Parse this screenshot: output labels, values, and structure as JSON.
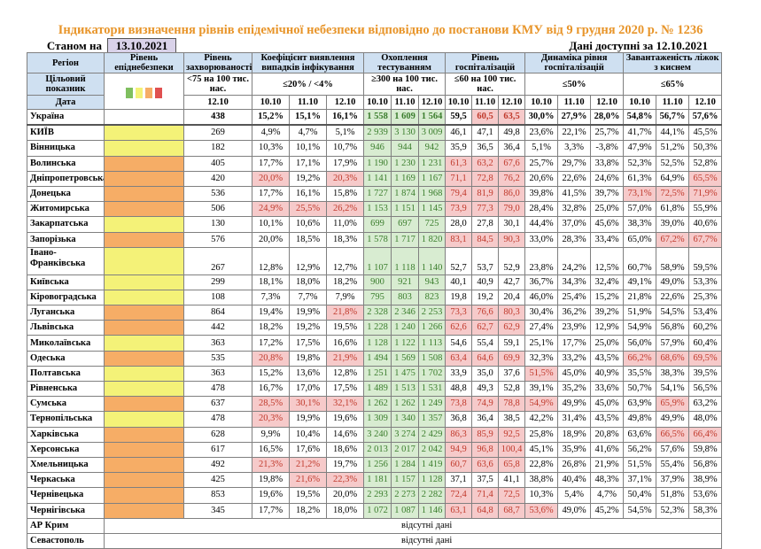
{
  "title": "Індикатори визначення рівнів епідемічної небезпеки відповідно до постанови КМУ від 9 грудня 2020 р. № 1236",
  "as_of_label": "Станом на",
  "as_of_date": "13.10.2021",
  "available_label": "Дані доступні за  12.10.2021",
  "colors": {
    "yellow": "#f4f278",
    "orange": "#f6ad66",
    "green": "#7fbf5f",
    "red": "#e05050",
    "title": "#e8952a"
  },
  "headers": {
    "region": "Регіон",
    "level": "Рівень епіднебезпеки",
    "incidence": "Рівень захворюваності",
    "detection": "Коефіцієнт виявлення випадків інфікування",
    "testing": "Охоплення тестуванням",
    "hospitalization": "Рівень госпіталізацій",
    "hosp_dynamics": "Динаміка рівня госпіталізацій",
    "oxygen_beds": "Завантаженість ліжок з киснем"
  },
  "targets": {
    "label": "Цільовий показник",
    "incidence": "<75 на 100 тис. нас.",
    "detection": "≤20% / <4%",
    "testing": "≥300 на 100 тис. нас.",
    "hospitalization": "≤60 на 100 тис. нас.",
    "hosp_dynamics": "≤50%",
    "oxygen_beds": "≤65%"
  },
  "level_legend": [
    "green",
    "yellow",
    "orange",
    "red"
  ],
  "dates": {
    "label": "Дата",
    "incidence": "12.10",
    "d1": "10.10",
    "d2": "11.10",
    "d3": "12.10"
  },
  "rows": [
    {
      "name": "Україна",
      "level": "",
      "inc": "438",
      "det": [
        "15,2%",
        "15,1%",
        "16,1%"
      ],
      "tst": [
        "1 558",
        "1 609",
        "1 564"
      ],
      "hosp": [
        "59,5",
        "60,5",
        "63,5"
      ],
      "dyn": [
        "30,0%",
        "27,9%",
        "28,0%"
      ],
      "oxy": [
        "54,8%",
        "56,7%",
        "57,6%"
      ],
      "red": [
        "h1",
        "h2"
      ]
    },
    {
      "name": "КИЇВ",
      "level": "yellow",
      "inc": "269",
      "det": [
        "4,9%",
        "4,7%",
        "5,1%"
      ],
      "tst": [
        "2 939",
        "3 130",
        "3 009"
      ],
      "hosp": [
        "46,1",
        "47,1",
        "49,8"
      ],
      "dyn": [
        "23,6%",
        "22,1%",
        "25,7%"
      ],
      "oxy": [
        "41,7%",
        "44,1%",
        "45,5%"
      ],
      "red": []
    },
    {
      "name": "Вінницька",
      "level": "yellow",
      "inc": "182",
      "det": [
        "10,3%",
        "10,1%",
        "10,7%"
      ],
      "tst": [
        "946",
        "944",
        "942"
      ],
      "hosp": [
        "35,9",
        "36,5",
        "36,4"
      ],
      "dyn": [
        "5,1%",
        "3,3%",
        "-3,8%"
      ],
      "oxy": [
        "47,9%",
        "51,2%",
        "50,3%"
      ],
      "red": []
    },
    {
      "name": "Волинська",
      "level": "orange",
      "inc": "405",
      "det": [
        "17,7%",
        "17,1%",
        "17,9%"
      ],
      "tst": [
        "1 190",
        "1 230",
        "1 231"
      ],
      "hosp": [
        "61,3",
        "63,2",
        "67,6"
      ],
      "dyn": [
        "25,7%",
        "29,7%",
        "33,8%"
      ],
      "oxy": [
        "52,3%",
        "52,5%",
        "52,8%"
      ],
      "red": [
        "h0",
        "h1",
        "h2"
      ]
    },
    {
      "name": "Дніпропетровська",
      "level": "orange",
      "inc": "420",
      "det": [
        "20,0%",
        "19,2%",
        "20,3%"
      ],
      "tst": [
        "1 141",
        "1 169",
        "1 167"
      ],
      "hosp": [
        "71,1",
        "72,8",
        "76,2"
      ],
      "dyn": [
        "20,6%",
        "22,6%",
        "24,6%"
      ],
      "oxy": [
        "61,3%",
        "64,9%",
        "65,5%"
      ],
      "red": [
        "d0",
        "d2",
        "h0",
        "h1",
        "h2",
        "o2"
      ]
    },
    {
      "name": "Донецька",
      "level": "orange",
      "inc": "536",
      "det": [
        "17,7%",
        "16,1%",
        "15,8%"
      ],
      "tst": [
        "1 727",
        "1 874",
        "1 968"
      ],
      "hosp": [
        "79,4",
        "81,9",
        "86,0"
      ],
      "dyn": [
        "39,8%",
        "41,5%",
        "39,7%"
      ],
      "oxy": [
        "73,1%",
        "72,5%",
        "71,9%"
      ],
      "red": [
        "h0",
        "h1",
        "h2",
        "o0",
        "o1",
        "o2"
      ]
    },
    {
      "name": "Житомирська",
      "level": "orange",
      "inc": "506",
      "det": [
        "24,9%",
        "25,5%",
        "26,2%"
      ],
      "tst": [
        "1 153",
        "1 151",
        "1 145"
      ],
      "hosp": [
        "73,9",
        "77,3",
        "79,0"
      ],
      "dyn": [
        "28,4%",
        "32,8%",
        "25,0%"
      ],
      "oxy": [
        "57,0%",
        "61,8%",
        "55,9%"
      ],
      "red": [
        "d0",
        "d1",
        "d2",
        "h0",
        "h1",
        "h2"
      ]
    },
    {
      "name": "Закарпатська",
      "level": "yellow",
      "inc": "130",
      "det": [
        "10,1%",
        "10,6%",
        "11,0%"
      ],
      "tst": [
        "699",
        "697",
        "725"
      ],
      "hosp": [
        "28,0",
        "27,8",
        "30,1"
      ],
      "dyn": [
        "44,4%",
        "37,0%",
        "45,6%"
      ],
      "oxy": [
        "38,3%",
        "39,0%",
        "40,6%"
      ],
      "red": []
    },
    {
      "name": "Запорізька",
      "level": "orange",
      "inc": "576",
      "det": [
        "20,0%",
        "18,5%",
        "18,3%"
      ],
      "tst": [
        "1 578",
        "1 717",
        "1 820"
      ],
      "hosp": [
        "83,1",
        "84,5",
        "90,3"
      ],
      "dyn": [
        "33,0%",
        "28,3%",
        "33,4%"
      ],
      "oxy": [
        "65,0%",
        "67,2%",
        "67,7%"
      ],
      "red": [
        "h0",
        "h1",
        "h2",
        "o1",
        "o2"
      ]
    },
    {
      "name": "Івано-Франківська",
      "level": "yellow",
      "inc": "267",
      "det": [
        "12,8%",
        "12,9%",
        "12,7%"
      ],
      "tst": [
        "1 107",
        "1 118",
        "1 140"
      ],
      "hosp": [
        "52,7",
        "53,7",
        "52,9"
      ],
      "dyn": [
        "23,8%",
        "24,2%",
        "12,5%"
      ],
      "oxy": [
        "60,7%",
        "58,9%",
        "59,5%"
      ],
      "red": [],
      "tall": true
    },
    {
      "name": "Київська",
      "level": "yellow",
      "inc": "299",
      "det": [
        "18,1%",
        "18,0%",
        "18,2%"
      ],
      "tst": [
        "900",
        "921",
        "943"
      ],
      "hosp": [
        "40,1",
        "40,9",
        "42,7"
      ],
      "dyn": [
        "36,7%",
        "34,3%",
        "32,4%"
      ],
      "oxy": [
        "49,1%",
        "49,0%",
        "53,3%"
      ],
      "red": []
    },
    {
      "name": "Кіровоградська",
      "level": "yellow",
      "inc": "108",
      "det": [
        "7,3%",
        "7,7%",
        "7,9%"
      ],
      "tst": [
        "795",
        "803",
        "823"
      ],
      "hosp": [
        "19,8",
        "19,2",
        "20,4"
      ],
      "dyn": [
        "46,0%",
        "25,4%",
        "15,2%"
      ],
      "oxy": [
        "21,8%",
        "22,6%",
        "25,3%"
      ],
      "red": []
    },
    {
      "name": "Луганська",
      "level": "orange",
      "inc": "864",
      "det": [
        "19,4%",
        "19,9%",
        "21,8%"
      ],
      "tst": [
        "2 328",
        "2 346",
        "2 253"
      ],
      "hosp": [
        "73,3",
        "76,6",
        "80,3"
      ],
      "dyn": [
        "30,4%",
        "36,2%",
        "39,2%"
      ],
      "oxy": [
        "51,9%",
        "54,5%",
        "53,4%"
      ],
      "red": [
        "d2",
        "h0",
        "h1",
        "h2"
      ]
    },
    {
      "name": "Львівська",
      "level": "orange",
      "inc": "442",
      "det": [
        "18,2%",
        "19,2%",
        "19,5%"
      ],
      "tst": [
        "1 228",
        "1 240",
        "1 266"
      ],
      "hosp": [
        "62,6",
        "62,7",
        "62,9"
      ],
      "dyn": [
        "27,4%",
        "23,9%",
        "12,9%"
      ],
      "oxy": [
        "54,9%",
        "56,8%",
        "60,2%"
      ],
      "red": [
        "h0",
        "h1",
        "h2"
      ]
    },
    {
      "name": "Миколаївська",
      "level": "yellow",
      "inc": "363",
      "det": [
        "17,2%",
        "17,5%",
        "16,6%"
      ],
      "tst": [
        "1 128",
        "1 122",
        "1 113"
      ],
      "hosp": [
        "54,6",
        "55,4",
        "59,1"
      ],
      "dyn": [
        "25,1%",
        "17,7%",
        "25,0%"
      ],
      "oxy": [
        "56,0%",
        "57,9%",
        "60,4%"
      ],
      "red": []
    },
    {
      "name": "Одеська",
      "level": "orange",
      "inc": "535",
      "det": [
        "20,8%",
        "19,8%",
        "21,9%"
      ],
      "tst": [
        "1 494",
        "1 569",
        "1 508"
      ],
      "hosp": [
        "63,4",
        "64,6",
        "69,9"
      ],
      "dyn": [
        "32,3%",
        "33,2%",
        "43,5%"
      ],
      "oxy": [
        "66,2%",
        "68,6%",
        "69,5%"
      ],
      "red": [
        "d0",
        "d2",
        "h0",
        "h1",
        "h2",
        "o0",
        "o1",
        "o2"
      ]
    },
    {
      "name": "Полтавська",
      "level": "yellow",
      "inc": "363",
      "det": [
        "15,2%",
        "13,6%",
        "12,8%"
      ],
      "tst": [
        "1 251",
        "1 475",
        "1 702"
      ],
      "hosp": [
        "33,9",
        "35,0",
        "37,6"
      ],
      "dyn": [
        "51,5%",
        "45,0%",
        "40,9%"
      ],
      "oxy": [
        "35,5%",
        "38,3%",
        "39,5%"
      ],
      "red": [
        "y0"
      ]
    },
    {
      "name": "Рівненська",
      "level": "yellow",
      "inc": "478",
      "det": [
        "16,7%",
        "17,0%",
        "17,5%"
      ],
      "tst": [
        "1 489",
        "1 513",
        "1 531"
      ],
      "hosp": [
        "48,8",
        "49,3",
        "52,8"
      ],
      "dyn": [
        "39,1%",
        "35,2%",
        "33,6%"
      ],
      "oxy": [
        "50,7%",
        "54,1%",
        "56,5%"
      ],
      "red": []
    },
    {
      "name": "Сумська",
      "level": "orange",
      "inc": "637",
      "det": [
        "28,5%",
        "30,1%",
        "32,1%"
      ],
      "tst": [
        "1 262",
        "1 262",
        "1 249"
      ],
      "hosp": [
        "73,8",
        "74,9",
        "78,8"
      ],
      "dyn": [
        "54,9%",
        "49,9%",
        "45,0%"
      ],
      "oxy": [
        "63,9%",
        "65,9%",
        "63,2%"
      ],
      "red": [
        "d0",
        "d1",
        "d2",
        "h0",
        "h1",
        "h2",
        "y0",
        "o1"
      ]
    },
    {
      "name": "Тернопільська",
      "level": "yellow",
      "inc": "478",
      "det": [
        "20,3%",
        "19,9%",
        "19,6%"
      ],
      "tst": [
        "1 309",
        "1 340",
        "1 357"
      ],
      "hosp": [
        "36,8",
        "36,4",
        "38,5"
      ],
      "dyn": [
        "42,2%",
        "31,4%",
        "43,5%"
      ],
      "oxy": [
        "49,8%",
        "49,9%",
        "48,0%"
      ],
      "red": [
        "d0"
      ]
    },
    {
      "name": "Харківська",
      "level": "orange",
      "inc": "628",
      "det": [
        "9,9%",
        "10,4%",
        "14,6%"
      ],
      "tst": [
        "3 240",
        "3 274",
        "2 429"
      ],
      "hosp": [
        "86,3",
        "85,9",
        "92,5"
      ],
      "dyn": [
        "25,8%",
        "18,9%",
        "20,8%"
      ],
      "oxy": [
        "63,6%",
        "66,5%",
        "66,4%"
      ],
      "red": [
        "h0",
        "h1",
        "h2",
        "o1",
        "o2"
      ]
    },
    {
      "name": "Херсонська",
      "level": "orange",
      "inc": "617",
      "det": [
        "16,5%",
        "17,6%",
        "18,6%"
      ],
      "tst": [
        "2 013",
        "2 017",
        "2 042"
      ],
      "hosp": [
        "94,9",
        "96,8",
        "100,4"
      ],
      "dyn": [
        "45,1%",
        "35,9%",
        "41,6%"
      ],
      "oxy": [
        "56,2%",
        "57,6%",
        "59,8%"
      ],
      "red": [
        "h0",
        "h1",
        "h2"
      ]
    },
    {
      "name": "Хмельницька",
      "level": "orange",
      "inc": "492",
      "det": [
        "21,3%",
        "21,2%",
        "19,7%"
      ],
      "tst": [
        "1 256",
        "1 284",
        "1 419"
      ],
      "hosp": [
        "60,7",
        "63,6",
        "65,8"
      ],
      "dyn": [
        "22,8%",
        "26,8%",
        "21,9%"
      ],
      "oxy": [
        "51,5%",
        "55,4%",
        "56,8%"
      ],
      "red": [
        "d0",
        "d1",
        "h0",
        "h1",
        "h2"
      ]
    },
    {
      "name": "Черкаська",
      "level": "orange",
      "inc": "425",
      "det": [
        "19,8%",
        "21,6%",
        "22,3%"
      ],
      "tst": [
        "1 181",
        "1 157",
        "1 128"
      ],
      "hosp": [
        "37,1",
        "37,5",
        "41,1"
      ],
      "dyn": [
        "38,8%",
        "40,4%",
        "48,3%"
      ],
      "oxy": [
        "37,1%",
        "37,9%",
        "38,9%"
      ],
      "red": [
        "d1",
        "d2"
      ]
    },
    {
      "name": "Чернівецька",
      "level": "orange",
      "inc": "853",
      "det": [
        "19,6%",
        "19,5%",
        "20,0%"
      ],
      "tst": [
        "2 293",
        "2 273",
        "2 282"
      ],
      "hosp": [
        "72,4",
        "71,4",
        "72,5"
      ],
      "dyn": [
        "10,3%",
        "5,4%",
        "4,7%"
      ],
      "oxy": [
        "50,4%",
        "51,8%",
        "53,6%"
      ],
      "red": [
        "h0",
        "h1",
        "h2"
      ]
    },
    {
      "name": "Чернігівська",
      "level": "orange",
      "inc": "345",
      "det": [
        "17,7%",
        "18,2%",
        "18,0%"
      ],
      "tst": [
        "1 072",
        "1 087",
        "1 146"
      ],
      "hosp": [
        "63,1",
        "64,8",
        "68,7"
      ],
      "dyn": [
        "53,6%",
        "49,0%",
        "45,2%"
      ],
      "oxy": [
        "54,5%",
        "52,3%",
        "58,3%"
      ],
      "red": [
        "h0",
        "h1",
        "h2",
        "y0"
      ]
    }
  ],
  "no_data_rows": [
    {
      "name": "АР Крим",
      "text": "відсутні дані"
    },
    {
      "name": "Севастополь",
      "text": "відсутні дані"
    }
  ]
}
